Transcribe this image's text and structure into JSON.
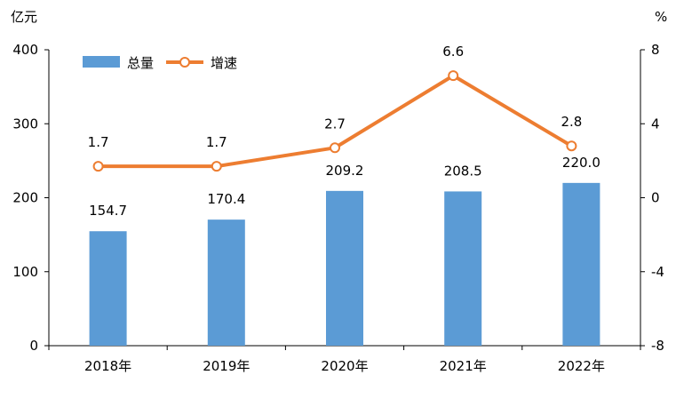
{
  "chart_data": {
    "type": "bar",
    "categories": [
      "2018年",
      "2019年",
      "2020年",
      "2021年",
      "2022年"
    ],
    "series": [
      {
        "name": "总量",
        "type": "bar",
        "axis": "left",
        "color": "#5b9bd5",
        "values": [
          154.7,
          170.4,
          209.2,
          208.5,
          220.0
        ],
        "labels": [
          "154.7",
          "170.4",
          "209.2",
          "208.5",
          "220.0"
        ]
      },
      {
        "name": "增速",
        "type": "line",
        "axis": "right",
        "color": "#ed7d31",
        "marker_fill": "#ffffff",
        "values": [
          1.7,
          1.7,
          2.7,
          6.6,
          2.8
        ],
        "labels": [
          "1.7",
          "1.7",
          "2.7",
          "6.6",
          "2.8"
        ]
      }
    ],
    "left_axis": {
      "unit": "亿元",
      "ylim": [
        0,
        400
      ],
      "ticks": [
        "0",
        "100",
        "200",
        "300",
        "400"
      ]
    },
    "right_axis": {
      "unit": "%",
      "ylim": [
        -8,
        8
      ],
      "ticks": [
        "-8",
        "-4",
        "0",
        "4",
        "8"
      ]
    },
    "grid": false,
    "legend": {
      "position": "top-left",
      "items": [
        "总量",
        "增速"
      ]
    }
  }
}
